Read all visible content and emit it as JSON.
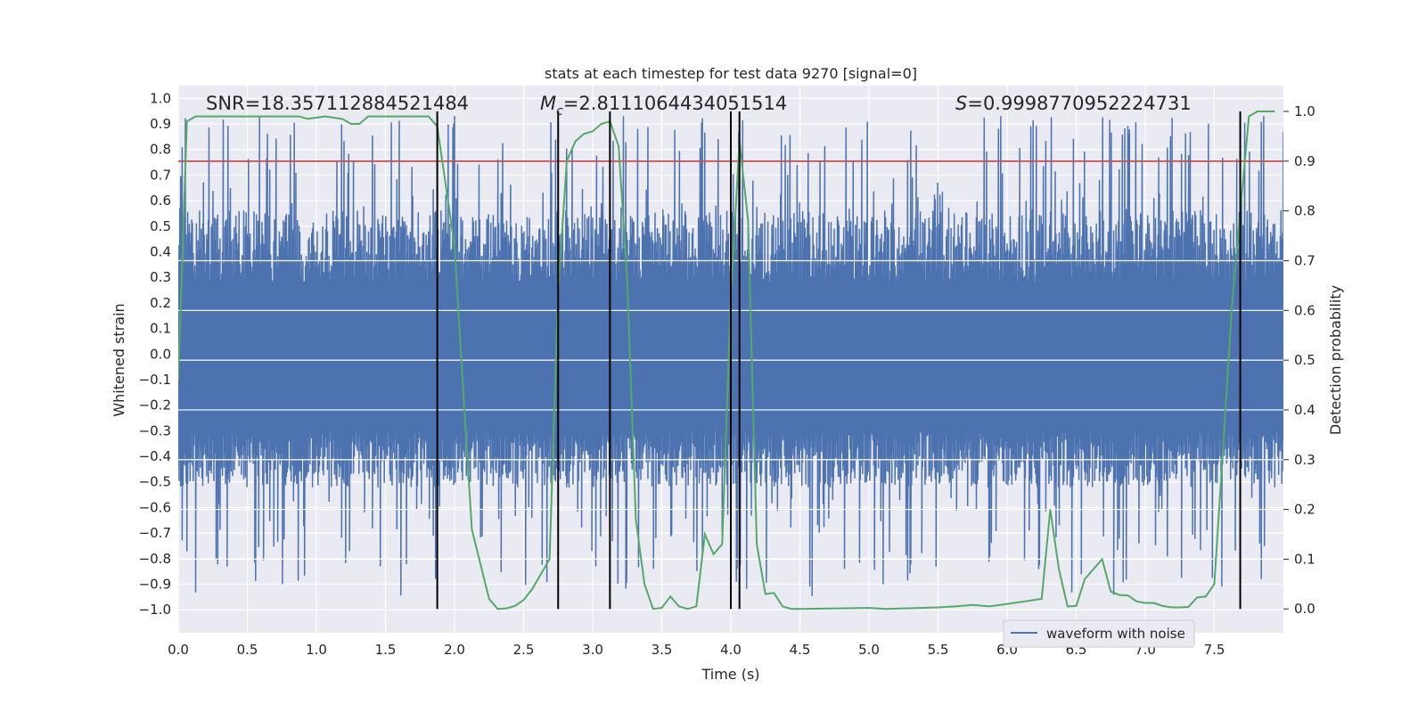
{
  "chart_data": {
    "type": "line",
    "title": "stats at each timestep for test data 9270 [signal=0]",
    "xlabel": "Time (s)",
    "ylabel": "Whitened strain",
    "y2label": "Detection probability",
    "xlim": [
      0.0,
      8.0
    ],
    "ylim": [
      -1.09,
      1.05
    ],
    "y2lim": [
      -0.048,
      1.052
    ],
    "x_ticks": [
      "0.0",
      "0.5",
      "1.0",
      "1.5",
      "2.0",
      "2.5",
      "3.0",
      "3.5",
      "4.0",
      "4.5",
      "5.0",
      "5.5",
      "6.0",
      "6.5",
      "7.0",
      "7.5"
    ],
    "y_ticks": [
      "1.0",
      "0.9",
      "0.8",
      "0.7",
      "0.6",
      "0.5",
      "0.4",
      "0.3",
      "0.2",
      "0.1",
      "0.0",
      "−0.1",
      "−0.2",
      "−0.3",
      "−0.4",
      "−0.5",
      "−0.6",
      "−0.7",
      "−0.8",
      "−0.9",
      "−1.0"
    ],
    "y2_ticks": [
      "1.0",
      "0.9",
      "0.8",
      "0.7",
      "0.6",
      "0.5",
      "0.4",
      "0.3",
      "0.2",
      "0.1",
      "0.0"
    ],
    "annotations": {
      "snr": "SNR=18.357112884521484",
      "mc_symbol": "M",
      "mc_sub": "c",
      "mc_value": "=2.8111064434051514",
      "s_symbol": "S",
      "s_value": "=0.9998770952224731"
    },
    "threshold": 0.9,
    "vertical_lines_s": [
      1.875,
      2.75,
      3.125,
      4.0,
      4.0625,
      7.6875
    ],
    "legend": {
      "label": "waveform with noise",
      "position": "lower-right"
    },
    "series": [
      {
        "name": "waveform with noise",
        "axis": "left",
        "color": "#4c72b0",
        "note": "dense noise time series between about -1.0 and 0.95"
      },
      {
        "name": "detection probability",
        "axis": "right",
        "color": "#55a868",
        "x": [
          0.0,
          0.0625,
          0.125,
          0.25,
          0.5,
          0.75,
          0.875,
          0.9375,
          1.0625,
          1.1875,
          1.25,
          1.3125,
          1.375,
          1.5,
          1.75,
          1.8125,
          1.875,
          2.0,
          2.0625,
          2.125,
          2.1875,
          2.25,
          2.3125,
          2.375,
          2.4375,
          2.5,
          2.5625,
          2.625,
          2.6875,
          2.75,
          2.8125,
          2.875,
          2.9375,
          3.0,
          3.0625,
          3.125,
          3.1875,
          3.25,
          3.3125,
          3.375,
          3.4375,
          3.5,
          3.5625,
          3.625,
          3.6875,
          3.75,
          3.8125,
          3.875,
          3.9375,
          4.0,
          4.0625,
          4.125,
          4.1875,
          4.25,
          4.3125,
          4.375,
          4.4375,
          4.5,
          5.0,
          5.125,
          5.5,
          5.625,
          5.75,
          5.875,
          6.0,
          6.25,
          6.3125,
          6.375,
          6.4375,
          6.5,
          6.5625,
          6.6875,
          6.75,
          6.8125,
          6.875,
          6.9375,
          7.0,
          7.0625,
          7.125,
          7.1875,
          7.25,
          7.3125,
          7.375,
          7.4375,
          7.5,
          7.5625,
          7.625,
          7.6875,
          7.75,
          7.8125,
          7.9375
        ],
        "values": [
          0.46,
          0.98,
          0.99,
          0.99,
          0.99,
          0.99,
          0.99,
          0.985,
          0.99,
          0.985,
          0.975,
          0.975,
          0.99,
          0.99,
          0.99,
          0.99,
          0.97,
          0.73,
          0.44,
          0.16,
          0.09,
          0.02,
          0.0,
          0.001,
          0.006,
          0.018,
          0.04,
          0.07,
          0.1,
          0.64,
          0.9,
          0.94,
          0.955,
          0.96,
          0.975,
          0.98,
          0.93,
          0.66,
          0.18,
          0.05,
          0.0,
          0.002,
          0.025,
          0.005,
          0.0,
          0.005,
          0.15,
          0.11,
          0.13,
          0.63,
          0.94,
          0.78,
          0.13,
          0.03,
          0.032,
          0.005,
          0.0,
          0.0,
          0.002,
          0.0,
          0.003,
          0.005,
          0.008,
          0.005,
          0.01,
          0.02,
          0.2,
          0.08,
          0.005,
          0.006,
          0.06,
          0.1,
          0.035,
          0.028,
          0.027,
          0.015,
          0.012,
          0.012,
          0.006,
          0.003,
          0.003,
          0.004,
          0.023,
          0.025,
          0.05,
          0.32,
          0.6,
          0.8,
          0.99,
          1.0,
          1.0
        ]
      }
    ]
  }
}
